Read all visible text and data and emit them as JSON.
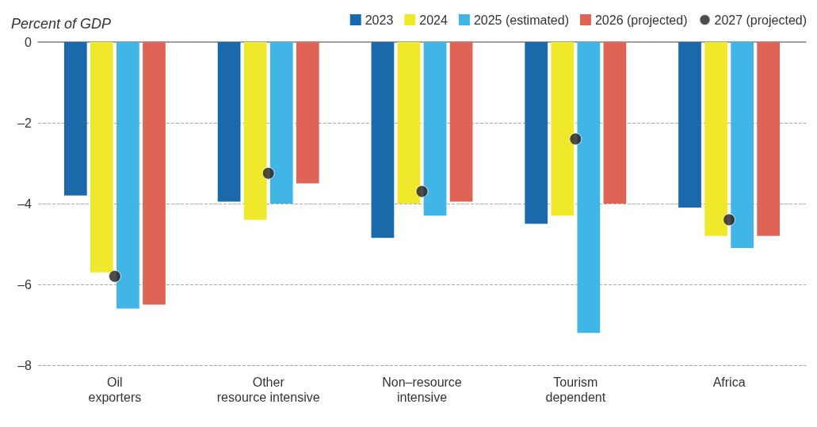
{
  "chart_data": {
    "type": "bar",
    "ylabel": "Percent of GDP",
    "categories": [
      "Oil\nexporters",
      "Other\nresource intensive",
      "Non–resource\nintensive",
      "Tourism\ndependent",
      "Africa"
    ],
    "series": [
      {
        "name": "2023",
        "color": "#1a6aab",
        "values": [
          -3.8,
          -3.95,
          -4.85,
          -4.5,
          -4.1
        ]
      },
      {
        "name": "2024",
        "color": "#f0e82a",
        "values": [
          -5.7,
          -4.4,
          -4.0,
          -4.3,
          -4.8
        ]
      },
      {
        "name": "2025 (estimated)",
        "color": "#41b6e6",
        "values": [
          -6.6,
          -4.0,
          -4.3,
          -7.2,
          -5.1
        ]
      },
      {
        "name": "2026 (projected)",
        "color": "#e06455",
        "values": [
          -6.5,
          -3.5,
          -3.95,
          -4.0,
          -4.8
        ]
      },
      {
        "name": "2027 (projected)",
        "type": "scatter",
        "color": "#231f20",
        "x": [
          "Oil\nexporters",
          "Other\nresource intensive",
          "Non–resource\nintensive",
          "Tourism\ndependent",
          "Africa"
        ],
        "values": [
          -5.8,
          -3.25,
          -3.7,
          -2.4,
          -4.4
        ]
      }
    ],
    "ylim": [
      -8,
      0
    ],
    "yticks": [
      0,
      {
        "value": -2,
        "label": "–2"
      },
      {
        "value": -4,
        "label": "–4"
      },
      {
        "value": -6,
        "label": "–6"
      },
      {
        "value": -8,
        "label": "–8"
      }
    ],
    "grid": "y",
    "legend": "top right",
    "marker": "circle"
  }
}
